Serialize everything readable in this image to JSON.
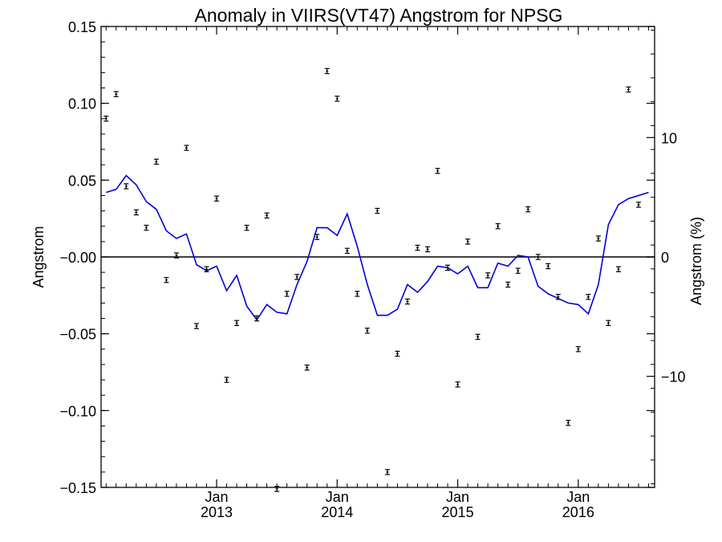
{
  "chart_data": {
    "type": "scatter",
    "title": "Anomaly in VIIRS(VT47) Angstrom for NPSG",
    "ylabel": "Angstrom",
    "y2label": "Angstrom (%)",
    "xlabel": "",
    "ylim": [
      -0.15,
      0.15
    ],
    "y2lim": [
      -19.3,
      19.3
    ],
    "xlim": [
      "2012-02",
      "2016-08"
    ],
    "yticks": [
      -0.15,
      -0.1,
      -0.05,
      0.0,
      0.05,
      0.1,
      0.15
    ],
    "ytick_labels": [
      "−0.15",
      "−0.10",
      "−0.05",
      "−0.00",
      "0.05",
      "0.10",
      "0.15"
    ],
    "y2ticks": [
      -10,
      0,
      10
    ],
    "y2tick_labels": [
      "−10",
      "0",
      "10"
    ],
    "xtick_labels": [
      {
        "month": "Jan",
        "year": "2013",
        "x": "2013-01"
      },
      {
        "month": "Jan",
        "year": "2014",
        "x": "2014-01"
      },
      {
        "month": "Jan",
        "year": "2015",
        "x": "2015-01"
      },
      {
        "month": "Jan",
        "year": "2016",
        "x": "2016-01"
      }
    ],
    "zero_line": true,
    "grid": false,
    "series": [
      {
        "kind": "points_with_errorbars",
        "color": "#000000",
        "x": [
          "2012-02",
          "2012-03",
          "2012-04",
          "2012-05",
          "2012-06",
          "2012-07",
          "2012-08",
          "2012-09",
          "2012-10",
          "2012-11",
          "2012-12",
          "2013-01",
          "2013-02",
          "2013-03",
          "2013-04",
          "2013-05",
          "2013-06",
          "2013-07",
          "2013-08",
          "2013-09",
          "2013-10",
          "2013-11",
          "2013-12",
          "2014-01",
          "2014-02",
          "2014-03",
          "2014-04",
          "2014-05",
          "2014-06",
          "2014-07",
          "2014-08",
          "2014-09",
          "2014-10",
          "2014-11",
          "2014-12",
          "2015-01",
          "2015-02",
          "2015-03",
          "2015-04",
          "2015-05",
          "2015-06",
          "2015-07",
          "2015-08",
          "2015-09",
          "2015-10",
          "2015-11",
          "2015-12",
          "2016-01",
          "2016-02",
          "2016-03",
          "2016-04",
          "2016-05",
          "2016-06",
          "2016-07",
          "2016-08"
        ],
        "y": [
          0.09,
          0.106,
          0.046,
          0.029,
          0.019,
          0.062,
          -0.015,
          0.001,
          0.071,
          -0.045,
          -0.008,
          0.038,
          -0.08,
          -0.043,
          0.019,
          -0.04,
          0.027,
          -0.151,
          -0.024,
          -0.013,
          -0.072,
          0.013,
          0.121,
          0.103,
          0.004,
          -0.024,
          -0.048,
          0.03,
          -0.14,
          -0.063,
          -0.029,
          0.006,
          0.005,
          0.056,
          -0.007,
          -0.083,
          0.01,
          -0.052,
          -0.012,
          0.02,
          -0.018,
          -0.009,
          0.031,
          0.0,
          -0.006,
          -0.026,
          -0.108,
          -0.06,
          -0.026,
          0.012,
          -0.043,
          -0.008,
          0.109,
          0.034,
          null
        ],
        "error": 0.001
      },
      {
        "kind": "line",
        "color": "#0000dd",
        "x": [
          "2012-02",
          "2012-03",
          "2012-04",
          "2012-05",
          "2012-06",
          "2012-07",
          "2012-08",
          "2012-09",
          "2012-10",
          "2012-11",
          "2012-12",
          "2013-01",
          "2013-02",
          "2013-03",
          "2013-04",
          "2013-05",
          "2013-06",
          "2013-07",
          "2013-08",
          "2013-09",
          "2013-10",
          "2013-11",
          "2013-12",
          "2014-01",
          "2014-02",
          "2014-03",
          "2014-04",
          "2014-05",
          "2014-06",
          "2014-07",
          "2014-08",
          "2014-09",
          "2014-10",
          "2014-11",
          "2014-12",
          "2015-01",
          "2015-02",
          "2015-03",
          "2015-04",
          "2015-05",
          "2015-06",
          "2015-07",
          "2015-08",
          "2015-09",
          "2015-10",
          "2015-11",
          "2015-12",
          "2016-01",
          "2016-02",
          "2016-03",
          "2016-04",
          "2016-05",
          "2016-06",
          "2016-07",
          "2016-08"
        ],
        "y": [
          0.042,
          0.044,
          0.053,
          0.047,
          0.036,
          0.031,
          0.017,
          0.012,
          0.015,
          -0.005,
          -0.009,
          -0.006,
          -0.022,
          -0.012,
          -0.032,
          -0.041,
          -0.031,
          -0.036,
          -0.037,
          -0.018,
          -0.003,
          0.019,
          0.019,
          0.014,
          0.028,
          0.007,
          -0.018,
          -0.038,
          -0.038,
          -0.034,
          -0.018,
          -0.023,
          -0.016,
          -0.006,
          -0.007,
          -0.011,
          -0.006,
          -0.02,
          -0.02,
          -0.004,
          -0.006,
          0.001,
          0.0,
          -0.019,
          -0.024,
          -0.027,
          -0.03,
          -0.031,
          -0.037,
          -0.018,
          0.021,
          0.034,
          0.038,
          0.04,
          0.042
        ]
      }
    ]
  }
}
